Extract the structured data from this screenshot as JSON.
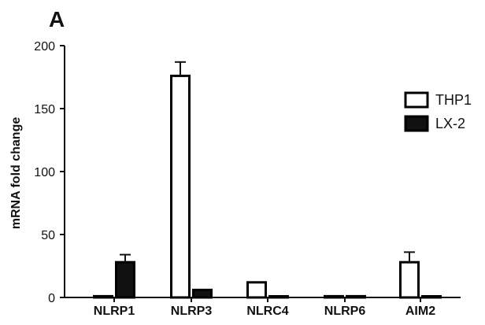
{
  "panel_label": "A",
  "chart_data": {
    "type": "bar",
    "title": "",
    "xlabel": "",
    "ylabel": "mRNA fold change",
    "categories": [
      "NLRP1",
      "NLRP3",
      "NLRC4",
      "NLRP6",
      "AIM2"
    ],
    "ylim": [
      0,
      200
    ],
    "yticks": [
      0,
      50,
      100,
      150,
      200
    ],
    "grid": false,
    "legend_position": "right",
    "series": [
      {
        "name": "THP1",
        "fill": "#ffffff",
        "stroke": "#000000",
        "values": [
          1,
          176,
          12,
          1,
          28
        ],
        "errors": [
          0,
          11,
          0,
          0,
          8
        ]
      },
      {
        "name": "LX-2",
        "fill": "#111111",
        "stroke": "#000000",
        "values": [
          28,
          6,
          0.5,
          1,
          0.5
        ],
        "errors": [
          6,
          0,
          0,
          0,
          0
        ]
      }
    ]
  }
}
